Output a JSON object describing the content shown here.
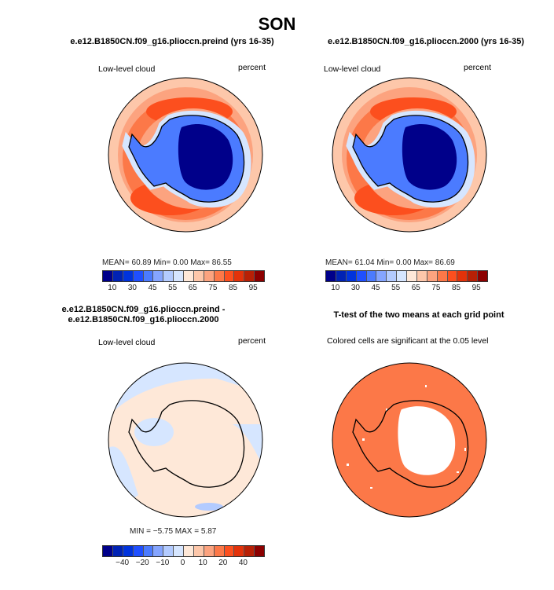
{
  "title": "SON",
  "panels": [
    {
      "title": "e.e12.B1850CN.f09_g16.plioccn.preind (yrs 16-35)",
      "left_label": "Low-level cloud",
      "right_label": "percent",
      "stats": "MEAN=   60.89   Min=    0.00   Max=   86.55"
    },
    {
      "title": "e.e12.B1850CN.f09_g16.plioccn.2000 (yrs 16-35)",
      "left_label": "Low-level cloud",
      "right_label": "percent",
      "stats": "MEAN=   61.04   Min=    0.00   Max=   86.69"
    },
    {
      "title": "e.e12.B1850CN.f09_g16.plioccn.preind - e.e12.B1850CN.f09_g16.plioccn.2000",
      "left_label": "Low-level cloud",
      "right_label": "percent",
      "stats": "MIN =   −5.75  MAX =    5.87"
    },
    {
      "title": "T-test of the two means at each grid point",
      "left_label": "Colored cells are significant at the 0.05 level"
    }
  ],
  "colorbar_abs": {
    "ticks": [
      "10",
      "30",
      "45",
      "55",
      "65",
      "75",
      "85",
      "95"
    ]
  },
  "colorbar_diff": {
    "ticks": [
      "−40",
      "−20",
      "−10",
      "0",
      "10",
      "20",
      "40"
    ]
  },
  "colors": [
    "#00008a",
    "#0022b4",
    "#0033dd",
    "#1f4fff",
    "#4b7bff",
    "#85a5ff",
    "#b3cbff",
    "#d6e6ff",
    "#fee8d8",
    "#fdc7aa",
    "#fca37f",
    "#fc7848",
    "#fc4f1e",
    "#e3320a",
    "#b82005",
    "#8c0000"
  ]
}
